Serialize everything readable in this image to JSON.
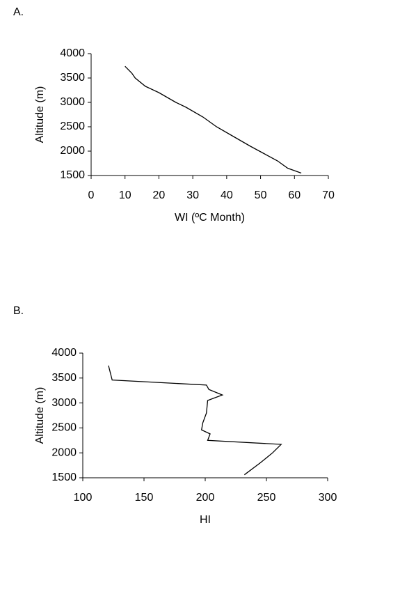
{
  "chart_data": [
    {
      "type": "line",
      "label": "A.",
      "xlabel": "WI (ºC Month)",
      "ylabel": "Altitude (m)",
      "xlim": [
        0,
        70
      ],
      "xticks": [
        0,
        10,
        20,
        30,
        40,
        50,
        60,
        70
      ],
      "ylim": [
        1500,
        4000
      ],
      "yticks": [
        1500,
        2000,
        2500,
        3000,
        3500,
        4000
      ],
      "series": [
        {
          "color": "#000000",
          "x": [
            10,
            12,
            13,
            16,
            20,
            25,
            28,
            33,
            37,
            42,
            47,
            51,
            55,
            58,
            62
          ],
          "values": [
            3740,
            3600,
            3500,
            3330,
            3200,
            3000,
            2900,
            2700,
            2500,
            2300,
            2100,
            1950,
            1800,
            1650,
            1550
          ]
        }
      ]
    },
    {
      "type": "line",
      "label": "B.",
      "xlabel": "HI",
      "ylabel": "Altitude (m)",
      "xlim": [
        100,
        300
      ],
      "xticks": [
        100,
        150,
        200,
        250,
        300
      ],
      "ylim": [
        1500,
        4000
      ],
      "yticks": [
        1500,
        2000,
        2500,
        3000,
        3500,
        4000
      ],
      "series": [
        {
          "color": "#000000",
          "x": [
            121,
            124,
            201,
            203,
            214,
            202,
            201,
            198,
            197,
            204,
            202,
            262,
            255,
            245,
            232
          ],
          "values": [
            3750,
            3460,
            3360,
            3270,
            3160,
            3050,
            2800,
            2600,
            2460,
            2380,
            2250,
            2170,
            2000,
            1800,
            1560
          ]
        }
      ]
    }
  ]
}
